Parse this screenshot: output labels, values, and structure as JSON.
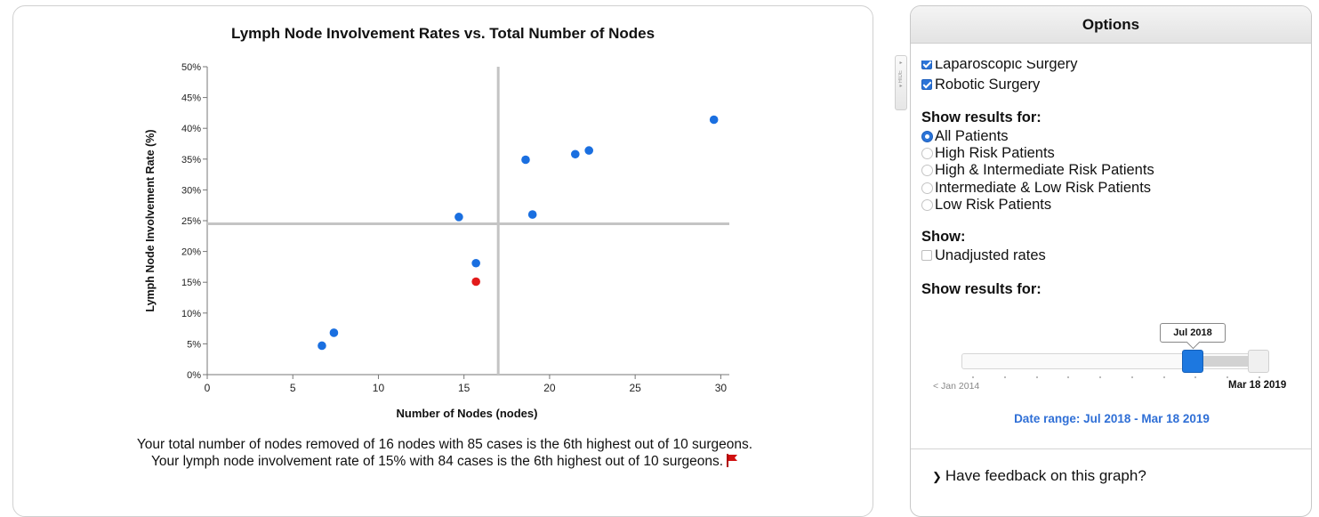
{
  "chart_data": {
    "type": "scatter",
    "title": "Lymph Node Involvement Rates vs. Total Number of Nodes",
    "xlabel": "Number of Nodes (nodes)",
    "ylabel": "Lymph Node Involvement Rate (%)",
    "xlim": [
      0,
      30.5
    ],
    "ylim": [
      0,
      50
    ],
    "x_ticks": [
      0,
      5,
      10,
      15,
      20,
      25,
      30
    ],
    "y_ticks": [
      0,
      5,
      10,
      15,
      20,
      25,
      30,
      35,
      40,
      45,
      50
    ],
    "y_tick_suffix": "%",
    "reference_lines": {
      "x": 17,
      "y": 24.5
    },
    "series": [
      {
        "color": "#1a6fe0",
        "points": [
          {
            "x": 6.7,
            "y": 4.7
          },
          {
            "x": 7.4,
            "y": 6.8
          },
          {
            "x": 14.7,
            "y": 25.6
          },
          {
            "x": 15.7,
            "y": 18.1
          },
          {
            "x": 18.6,
            "y": 34.9
          },
          {
            "x": 19.0,
            "y": 26.0
          },
          {
            "x": 21.5,
            "y": 35.8
          },
          {
            "x": 22.3,
            "y": 36.4
          },
          {
            "x": 29.6,
            "y": 41.4
          }
        ]
      },
      {
        "color": "#e21b1b",
        "points": [
          {
            "x": 15.7,
            "y": 15.1
          }
        ]
      }
    ]
  },
  "summary": {
    "line1": "Your total number of nodes removed of 16 nodes with 85 cases is the 6th highest out of 10 surgeons.",
    "line2": "Your lymph node involvement rate of 15% with 84 cases is the 6th highest out of 10 surgeons."
  },
  "hide_tab": {
    "label": "HIDE"
  },
  "options": {
    "header": "Options",
    "procedures": [
      {
        "label": "Laparoscopic Surgery",
        "checked": true
      },
      {
        "label": "Robotic Surgery",
        "checked": true
      }
    ],
    "patients_heading": "Show results for:",
    "patients": [
      {
        "label": "All Patients",
        "selected": true
      },
      {
        "label": "High Risk Patients",
        "selected": false
      },
      {
        "label": "High & Intermediate Risk Patients",
        "selected": false
      },
      {
        "label": "Intermediate & Low Risk Patients",
        "selected": false
      },
      {
        "label": "Low Risk Patients",
        "selected": false
      }
    ],
    "show_heading": "Show:",
    "unadjusted_label": "Unadjusted rates",
    "unadjusted_checked": false,
    "date_heading": "Show results for:",
    "slider": {
      "min_label": "< Jan 2014",
      "max_label": "Mar 18 2019",
      "tooltip": "Jul 2018",
      "range_start_fraction": 0.77,
      "range_end_fraction": 1.0,
      "tick_count": 10
    },
    "date_range": "Date range: Jul 2018 - Mar 18 2019",
    "feedback": "Have feedback on this graph?"
  },
  "colors": {
    "accent": "#2b74d8",
    "link": "#2f6fd6",
    "highlight": "#e21b1b"
  }
}
